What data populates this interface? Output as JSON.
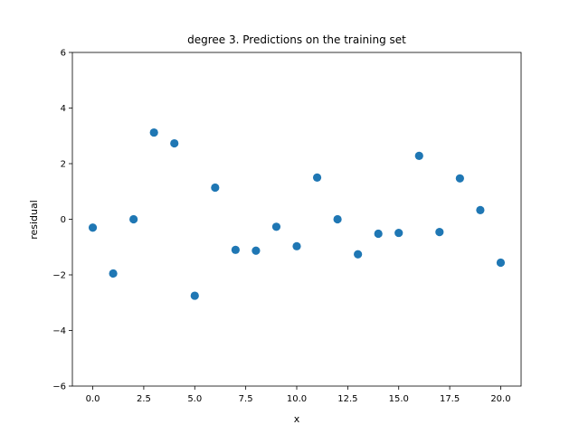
{
  "chart_data": {
    "type": "scatter",
    "title": "degree 3. Predictions on the training set",
    "xlabel": "x",
    "ylabel": "residual",
    "xlim": [
      -1,
      21
    ],
    "ylim": [
      -6,
      6
    ],
    "xticks": [
      0,
      2.5,
      5,
      7.5,
      10,
      12.5,
      15,
      17.5,
      20
    ],
    "xtick_labels": [
      "0.0",
      "2.5",
      "5.0",
      "7.5",
      "10.0",
      "12.5",
      "15.0",
      "17.5",
      "20.0"
    ],
    "yticks": [
      -6,
      -4,
      -2,
      0,
      2,
      4,
      6
    ],
    "ytick_labels": [
      "−6",
      "−4",
      "−2",
      "0",
      "2",
      "4",
      "6"
    ],
    "grid": false,
    "marker_color": "#1f77b4",
    "points": [
      {
        "x": 0,
        "y": -0.3
      },
      {
        "x": 1,
        "y": -1.95
      },
      {
        "x": 2,
        "y": 0.0
      },
      {
        "x": 3,
        "y": 3.12
      },
      {
        "x": 4,
        "y": 2.73
      },
      {
        "x": 5,
        "y": -2.75
      },
      {
        "x": 6,
        "y": 1.14
      },
      {
        "x": 7,
        "y": -1.1
      },
      {
        "x": 8,
        "y": -1.13
      },
      {
        "x": 9,
        "y": -0.27
      },
      {
        "x": 10,
        "y": -0.97
      },
      {
        "x": 11,
        "y": 1.5
      },
      {
        "x": 12,
        "y": 0.0
      },
      {
        "x": 13,
        "y": -1.26
      },
      {
        "x": 14,
        "y": -0.52
      },
      {
        "x": 15,
        "y": -0.49
      },
      {
        "x": 16,
        "y": 2.28
      },
      {
        "x": 17,
        "y": -0.46
      },
      {
        "x": 18,
        "y": 1.47
      },
      {
        "x": 19,
        "y": 0.33
      },
      {
        "x": 20,
        "y": -1.56
      }
    ]
  }
}
